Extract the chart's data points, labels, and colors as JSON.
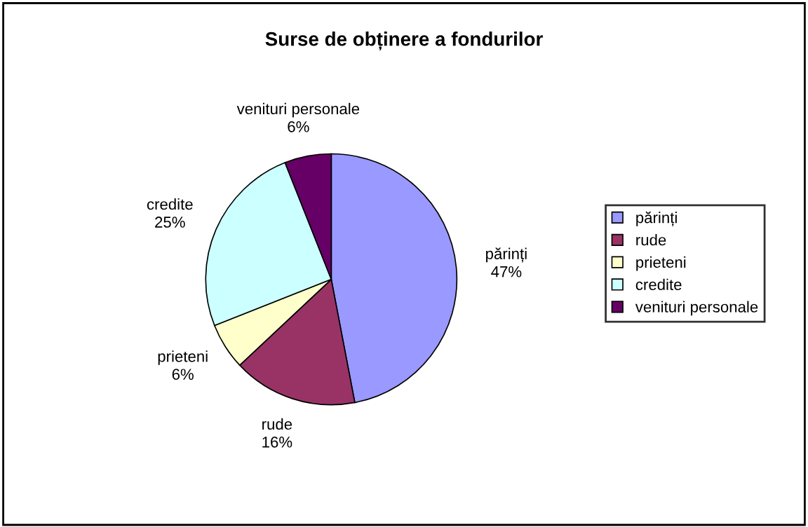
{
  "chart_data": {
    "type": "pie",
    "title": "Surse de obținere a fondurilor",
    "categories": [
      "părinți",
      "rude",
      "prieteni",
      "credite",
      "venituri personale"
    ],
    "values": [
      47,
      16,
      6,
      25,
      6
    ],
    "value_labels": [
      "47%",
      "16%",
      "6%",
      "25%",
      "6%"
    ],
    "colors": [
      "#9999ff",
      "#993366",
      "#ffffcc",
      "#ccffff",
      "#660066"
    ],
    "legend": "right"
  }
}
